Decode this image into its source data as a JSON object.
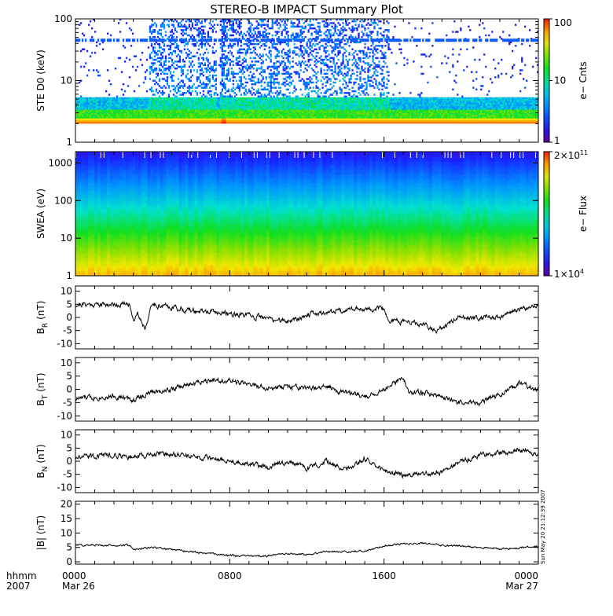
{
  "title": "STEREO-B IMPACT Summary Plot",
  "timestamp": "Sun May 20 21:12:39 2007",
  "x_axis": {
    "row1_label": "hhmm",
    "row2_label": "2007",
    "ticks": [
      {
        "hour": 0,
        "time": "0000",
        "date": "Mar 26"
      },
      {
        "hour": 8,
        "time": "0800",
        "date": ""
      },
      {
        "hour": 16,
        "time": "1600",
        "date": ""
      },
      {
        "hour": 24,
        "time": "0000",
        "date": "Mar 27"
      }
    ],
    "minor_tick_hours": 1,
    "range_hours": [
      0,
      24
    ]
  },
  "chart_data": [
    {
      "id": "ste",
      "type": "heatmap",
      "ylabel": "STE D0 (keV)",
      "yscale": "log",
      "ylim": [
        1,
        100
      ],
      "yticks": [
        {
          "v": 1,
          "label": "1"
        },
        {
          "v": 10,
          "label": "10"
        },
        {
          "v": 100,
          "label": "100"
        }
      ],
      "colorbar": {
        "label": "e− Cnts",
        "scale": "log",
        "min": 1,
        "max": 100,
        "ticks": [
          {
            "v": 1,
            "label": "1"
          },
          {
            "v": 10,
            "label": "10"
          },
          {
            "v": 100,
            "label": "100"
          }
        ]
      },
      "features": {
        "noise_floor_kev": 2.0,
        "peak_band_kev": 2.2,
        "horizontal_line_kev": 45,
        "active_hours": [
          [
            3.8,
            7.3
          ],
          [
            7.5,
            16.3
          ]
        ],
        "spike_hour": 7.7
      }
    },
    {
      "id": "swea",
      "type": "heatmap",
      "ylabel": "SWEA (eV)",
      "yscale": "log",
      "ylim": [
        1,
        2000
      ],
      "yticks": [
        {
          "v": 1,
          "label": "1"
        },
        {
          "v": 10,
          "label": "10"
        },
        {
          "v": 100,
          "label": "100"
        },
        {
          "v": 1000,
          "label": "1000"
        }
      ],
      "colorbar": {
        "label": "e− Flux",
        "scale": "log",
        "min": 10000,
        "max": 200000000000,
        "ticks": [
          {
            "v": 10000,
            "label": "1×10",
            "exp": "4"
          },
          {
            "v": 200000000000,
            "label": "2×10",
            "exp": "11"
          }
        ]
      }
    },
    {
      "id": "br",
      "type": "line",
      "ylabel": "B",
      "ylabel_sub": "R",
      "ylabel_unit": "(nT)",
      "ylim": [
        -12,
        12
      ],
      "yticks": [
        {
          "v": 10,
          "label": "10"
        },
        {
          "v": 5,
          "label": "5"
        },
        {
          "v": 0,
          "label": "0"
        },
        {
          "v": -5,
          "label": "-5"
        },
        {
          "v": -10,
          "label": "-10"
        }
      ],
      "x": [
        0,
        1,
        2,
        2.8,
        3.0,
        3.2,
        3.6,
        4.0,
        5,
        6,
        7,
        8,
        9,
        10,
        11,
        12,
        13,
        14,
        15,
        16,
        16.2,
        17,
        18,
        18.7,
        19.5,
        20,
        21,
        22,
        23,
        24
      ],
      "y": [
        5,
        5,
        5,
        5,
        -1,
        2,
        -4,
        5,
        4,
        2.5,
        2,
        1.5,
        0.5,
        -0.5,
        -1.5,
        1,
        2,
        3,
        3.5,
        3,
        -1,
        -1.5,
        -3,
        -5,
        -2,
        0,
        0,
        0,
        3,
        5
      ]
    },
    {
      "id": "bt",
      "type": "line",
      "ylabel": "B",
      "ylabel_sub": "T",
      "ylabel_unit": "(nT)",
      "ylim": [
        -12,
        12
      ],
      "yticks": [
        {
          "v": 10,
          "label": "10"
        },
        {
          "v": 5,
          "label": "5"
        },
        {
          "v": 0,
          "label": "0"
        },
        {
          "v": -5,
          "label": "-5"
        },
        {
          "v": -10,
          "label": "-10"
        }
      ],
      "x": [
        0,
        1,
        2,
        3,
        4,
        5,
        6,
        7,
        8,
        9,
        10,
        11,
        12,
        13,
        14,
        15,
        16,
        17,
        17.3,
        18,
        19,
        20,
        21,
        22,
        23,
        24
      ],
      "y": [
        -3.5,
        -3,
        -2.5,
        -4,
        -1,
        0,
        2,
        4,
        3,
        2,
        0,
        1,
        0,
        1,
        -1,
        -3,
        0,
        4,
        -1,
        -1,
        -3,
        -5,
        -5,
        -2,
        2,
        0
      ]
    },
    {
      "id": "bn",
      "type": "line",
      "ylabel": "B",
      "ylabel_sub": "N",
      "ylabel_unit": "(nT)",
      "ylim": [
        -12,
        12
      ],
      "yticks": [
        {
          "v": 10,
          "label": "10"
        },
        {
          "v": 5,
          "label": "5"
        },
        {
          "v": 0,
          "label": "0"
        },
        {
          "v": -5,
          "label": "-5"
        },
        {
          "v": -10,
          "label": "-10"
        }
      ],
      "x": [
        0,
        1,
        2,
        3,
        4,
        5,
        6,
        7,
        8,
        9,
        10,
        11,
        12,
        13,
        14,
        15,
        16,
        17,
        18,
        19,
        20,
        21,
        22,
        23,
        24
      ],
      "y": [
        1.5,
        2,
        2.5,
        1.5,
        3,
        2.5,
        2,
        1,
        0,
        -1,
        -2,
        0,
        -3,
        0,
        -3,
        1,
        -4,
        -5,
        -5,
        -4,
        0,
        2,
        3,
        4,
        3
      ]
    },
    {
      "id": "bmag",
      "type": "line",
      "ylabel": "|B| (nT)",
      "ylim": [
        -0.8,
        21
      ],
      "yticks": [
        {
          "v": 20,
          "label": "20"
        },
        {
          "v": 15,
          "label": "15"
        },
        {
          "v": 10,
          "label": "10"
        },
        {
          "v": 5,
          "label": "5"
        },
        {
          "v": 0,
          "label": "0"
        }
      ],
      "x": [
        0,
        2.8,
        3.0,
        4,
        5,
        6,
        7,
        8,
        9,
        10,
        11,
        12,
        13,
        14,
        15,
        16,
        17,
        18,
        19,
        20,
        21,
        22,
        23,
        24
      ],
      "y": [
        5.8,
        5.8,
        4.2,
        5,
        4.3,
        3.5,
        2.8,
        2.2,
        2.0,
        2.1,
        3,
        2.5,
        3.5,
        3.5,
        3.8,
        5.5,
        6.2,
        6.5,
        5.8,
        5.5,
        5,
        4.5,
        4.8,
        5.5
      ]
    }
  ]
}
